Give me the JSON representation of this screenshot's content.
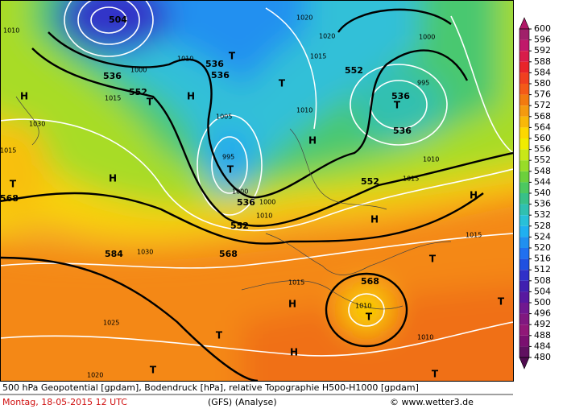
{
  "map": {
    "labels": [
      "504",
      "536",
      "536",
      "536",
      "552",
      "552",
      "552",
      "536",
      "536",
      "536",
      "552",
      "568",
      "568",
      "568",
      "584",
      "1005",
      "995",
      "1000",
      "1000",
      "1010",
      "1015",
      "1015",
      "1030",
      "1030",
      "1025",
      "1020",
      "1010",
      "1015",
      "1010",
      "1000",
      "995",
      "1015",
      "1010",
      "1010",
      "1020",
      "1015",
      "1010",
      "1000",
      "1020",
      "1010",
      "1015",
      "H",
      "H",
      "H",
      "H",
      "H",
      "H",
      "H",
      "H",
      "T",
      "T",
      "T",
      "T",
      "T",
      "T",
      "T",
      "T",
      "T",
      "T",
      "T",
      "T"
    ]
  },
  "legend": {
    "ticks": [
      600,
      596,
      592,
      588,
      584,
      580,
      576,
      572,
      568,
      564,
      560,
      556,
      552,
      548,
      544,
      540,
      536,
      532,
      528,
      524,
      520,
      516,
      512,
      508,
      504,
      500,
      496,
      492,
      488,
      484,
      480
    ],
    "colors": [
      "#b01868",
      "#a0206a",
      "#c0186a",
      "#d81c4a",
      "#e8242a",
      "#f04020",
      "#f45a18",
      "#f27a10",
      "#f49a10",
      "#f8b808",
      "#fcd800",
      "#f0ec00",
      "#c8e818",
      "#98dc28",
      "#6cd03c",
      "#4cc860",
      "#38c088",
      "#30c0b0",
      "#28c0d8",
      "#20b0f0",
      "#2090f0",
      "#2070f0",
      "#2050e0",
      "#3030c8",
      "#4020b0",
      "#5818a0",
      "#701890",
      "#801880",
      "#901878",
      "#7a1070",
      "#601060",
      "#500c50"
    ]
  },
  "caption": {
    "line1": "500 hPa Geopotential [gpdam], Bodendruck [hPa], relative Topographie H500-H1000 [gpdam]",
    "date": "Montag, 18-05-2015  12 UTC",
    "model": "(GFS)  (Analyse)",
    "copyright": "© www.wetter3.de"
  }
}
